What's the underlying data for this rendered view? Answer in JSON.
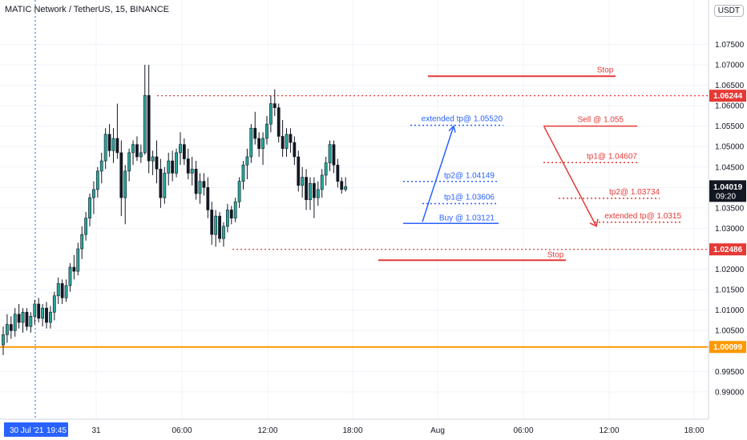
{
  "header": {
    "title": "MATIC Network / TetherUS, 15, BINANCE",
    "currency": "USDT"
  },
  "colors": {
    "up": "#26a69a",
    "candle": "#131722",
    "red": "#e53935",
    "blue": "#2962ff",
    "orange": "#ff9800",
    "grid": "#f0f3fa",
    "axis_text": "#131722"
  },
  "chart_data": {
    "type": "candlestick",
    "y_axis": {
      "range": [
        0.9845,
        1.0835
      ],
      "ticks": [
        "1.07500",
        "1.07000",
        "1.06500",
        "1.06000",
        "1.05500",
        "1.05000",
        "1.04500",
        "1.04000",
        "1.03500",
        "1.03000",
        "1.02000",
        "1.01500",
        "1.01000",
        "1.00500",
        "0.99500",
        "0.99000"
      ]
    },
    "x_axis": {
      "ticks": [
        "31",
        "06:00",
        "12:00",
        "18:00",
        "Aug",
        "06:00",
        "12:00",
        "18:00"
      ]
    },
    "cursor": {
      "date_label": "30 Jul '21",
      "time_label": "19:45"
    },
    "price_labels": [
      {
        "value": 1.06244,
        "text": "1.06244",
        "color": "#e53935"
      },
      {
        "value": 1.02486,
        "text": "1.02486",
        "color": "#e53935"
      },
      {
        "value": 1.00099,
        "text": "1.00099",
        "color": "#ff9800"
      }
    ],
    "last_price": {
      "value": 1.04019,
      "text": "1.04019",
      "time": "09:20"
    },
    "horizontal_lines": [
      {
        "value": 1.06244,
        "style": "dotted",
        "color": "#e53935"
      },
      {
        "value": 1.02486,
        "style": "dotted",
        "color": "#e53935"
      },
      {
        "value": 1.00099,
        "style": "solid",
        "color": "#ff9800"
      }
    ],
    "annotations": {
      "long": {
        "buy": {
          "text": "Buy @ 1.03121",
          "value": 1.03121
        },
        "tp1": {
          "text": "tp1@ 1.03606",
          "value": 1.03606
        },
        "tp2": {
          "text": "tp2@ 1.04149",
          "value": 1.04149
        },
        "extended": {
          "text": "extended tp@ 1.05520",
          "value": 1.0552
        },
        "stop": {
          "text": "Stop",
          "value": 1.0222
        }
      },
      "short": {
        "sell": {
          "text": "Sell @ 1.055",
          "value": 1.055
        },
        "tp1": {
          "text": "tp1@ 1.04607",
          "value": 1.04607
        },
        "tp2": {
          "text": "tp2@ 1.03734",
          "value": 1.03734
        },
        "extended": {
          "text": "extended tp@ 1.0315",
          "value": 1.0315
        },
        "stop": {
          "text": "Stop",
          "value": 1.0672
        }
      }
    },
    "candles_ohlc": [
      [
        1.0015,
        1.006,
        0.999,
        1.004
      ],
      [
        1.004,
        1.009,
        1.002,
        1.0065
      ],
      [
        1.0065,
        1.0085,
        1.003,
        1.005
      ],
      [
        1.005,
        1.0105,
        1.0035,
        1.009
      ],
      [
        1.009,
        1.0115,
        1.0055,
        1.007
      ],
      [
        1.007,
        1.0105,
        1.0045,
        1.0095
      ],
      [
        1.0095,
        1.0105,
        1.005,
        1.006
      ],
      [
        1.006,
        1.0095,
        1.0045,
        1.0085
      ],
      [
        1.0085,
        1.0125,
        1.0065,
        1.0115
      ],
      [
        1.0115,
        1.013,
        1.007,
        1.008
      ],
      [
        1.008,
        1.0115,
        1.006,
        1.0105
      ],
      [
        1.0105,
        1.012,
        1.0055,
        1.007
      ],
      [
        1.007,
        1.011,
        1.0055,
        1.0095
      ],
      [
        1.0095,
        1.0145,
        1.0075,
        1.0135
      ],
      [
        1.0135,
        1.018,
        1.0115,
        1.0165
      ],
      [
        1.0165,
        1.0175,
        1.0115,
        1.013
      ],
      [
        1.013,
        1.0175,
        1.012,
        1.016
      ],
      [
        1.016,
        1.0215,
        1.0145,
        1.0205
      ],
      [
        1.0205,
        1.0235,
        1.0175,
        1.0195
      ],
      [
        1.0195,
        1.0265,
        1.0185,
        1.025
      ],
      [
        1.025,
        1.0305,
        1.0225,
        1.0285
      ],
      [
        1.0285,
        1.034,
        1.027,
        1.0325
      ],
      [
        1.0325,
        1.0385,
        1.0305,
        1.0375
      ],
      [
        1.0375,
        1.0415,
        1.0335,
        1.0395
      ],
      [
        1.0395,
        1.045,
        1.0375,
        1.044
      ],
      [
        1.044,
        1.0485,
        1.041,
        1.0465
      ],
      [
        1.0465,
        1.0545,
        1.0445,
        1.053
      ],
      [
        1.053,
        1.0555,
        1.0475,
        1.049
      ],
      [
        1.049,
        1.0545,
        1.046,
        1.052
      ],
      [
        1.052,
        1.0605,
        1.047,
        1.0485
      ],
      [
        1.0485,
        1.0515,
        1.033,
        1.0375
      ],
      [
        1.0375,
        1.0455,
        1.031,
        1.044
      ],
      [
        1.044,
        1.0495,
        1.0415,
        1.0485
      ],
      [
        1.0485,
        1.0515,
        1.0455,
        1.0505
      ],
      [
        1.0505,
        1.0525,
        1.0465,
        1.0475
      ],
      [
        1.0475,
        1.0505,
        1.046,
        1.0485
      ],
      [
        1.0485,
        1.07,
        1.048,
        1.0625
      ],
      [
        1.0625,
        1.07,
        1.0435,
        1.0465
      ],
      [
        1.0465,
        1.049,
        1.043,
        1.0475
      ],
      [
        1.0475,
        1.0515,
        1.041,
        1.0445
      ],
      [
        1.0445,
        1.047,
        1.035,
        1.0375
      ],
      [
        1.0375,
        1.045,
        1.036,
        1.0435
      ],
      [
        1.0435,
        1.0485,
        1.0405,
        1.0465
      ],
      [
        1.0465,
        1.049,
        1.0415,
        1.0435
      ],
      [
        1.0435,
        1.0495,
        1.0425,
        1.0485
      ],
      [
        1.0485,
        1.0535,
        1.0455,
        1.0505
      ],
      [
        1.0505,
        1.052,
        1.0455,
        1.047
      ],
      [
        1.047,
        1.0495,
        1.042,
        1.0435
      ],
      [
        1.0435,
        1.0475,
        1.0405,
        1.0445
      ],
      [
        1.0445,
        1.0465,
        1.037,
        1.0385
      ],
      [
        1.0385,
        1.0435,
        1.036,
        1.0415
      ],
      [
        1.0415,
        1.0435,
        1.038,
        1.04
      ],
      [
        1.04,
        1.0425,
        1.0325,
        1.0345
      ],
      [
        1.0345,
        1.0365,
        1.026,
        1.0285
      ],
      [
        1.0285,
        1.0345,
        1.0255,
        1.033
      ],
      [
        1.033,
        1.034,
        1.0265,
        1.0275
      ],
      [
        1.0275,
        1.0315,
        1.0255,
        1.0305
      ],
      [
        1.0305,
        1.036,
        1.029,
        1.0345
      ],
      [
        1.0345,
        1.0355,
        1.031,
        1.0325
      ],
      [
        1.0325,
        1.0375,
        1.0315,
        1.0365
      ],
      [
        1.0365,
        1.0425,
        1.035,
        1.0415
      ],
      [
        1.0415,
        1.0465,
        1.0395,
        1.0455
      ],
      [
        1.0455,
        1.0495,
        1.042,
        1.0475
      ],
      [
        1.0475,
        1.0555,
        1.046,
        1.0545
      ],
      [
        1.0545,
        1.0585,
        1.0505,
        1.052
      ],
      [
        1.052,
        1.0535,
        1.0475,
        1.0495
      ],
      [
        1.0495,
        1.0535,
        1.0455,
        1.052
      ],
      [
        1.052,
        1.0575,
        1.0505,
        1.0555
      ],
      [
        1.0555,
        1.0625,
        1.0535,
        1.0605
      ],
      [
        1.0605,
        1.064,
        1.0575,
        1.0595
      ],
      [
        1.0595,
        1.0605,
        1.051,
        1.0525
      ],
      [
        1.0525,
        1.0565,
        1.0475,
        1.0495
      ],
      [
        1.0495,
        1.0545,
        1.0475,
        1.053
      ],
      [
        1.053,
        1.0545,
        1.0485,
        1.051
      ],
      [
        1.051,
        1.0525,
        1.0455,
        1.0475
      ],
      [
        1.0475,
        1.049,
        1.039,
        1.0405
      ],
      [
        1.0405,
        1.045,
        1.0375,
        1.0425
      ],
      [
        1.0425,
        1.0445,
        1.0345,
        1.037
      ],
      [
        1.037,
        1.0425,
        1.0345,
        1.041
      ],
      [
        1.041,
        1.0425,
        1.0325,
        1.0375
      ],
      [
        1.0375,
        1.0415,
        1.0355,
        1.0395
      ],
      [
        1.0395,
        1.0445,
        1.0375,
        1.043
      ],
      [
        1.043,
        1.0475,
        1.0405,
        1.046
      ],
      [
        1.046,
        1.0515,
        1.044,
        1.0505
      ],
      [
        1.0505,
        1.0515,
        1.0435,
        1.0455
      ],
      [
        1.0455,
        1.047,
        1.04,
        1.0415
      ],
      [
        1.0415,
        1.0425,
        1.0385,
        1.0395
      ],
      [
        1.0395,
        1.0425,
        1.039,
        1.0402
      ]
    ]
  }
}
